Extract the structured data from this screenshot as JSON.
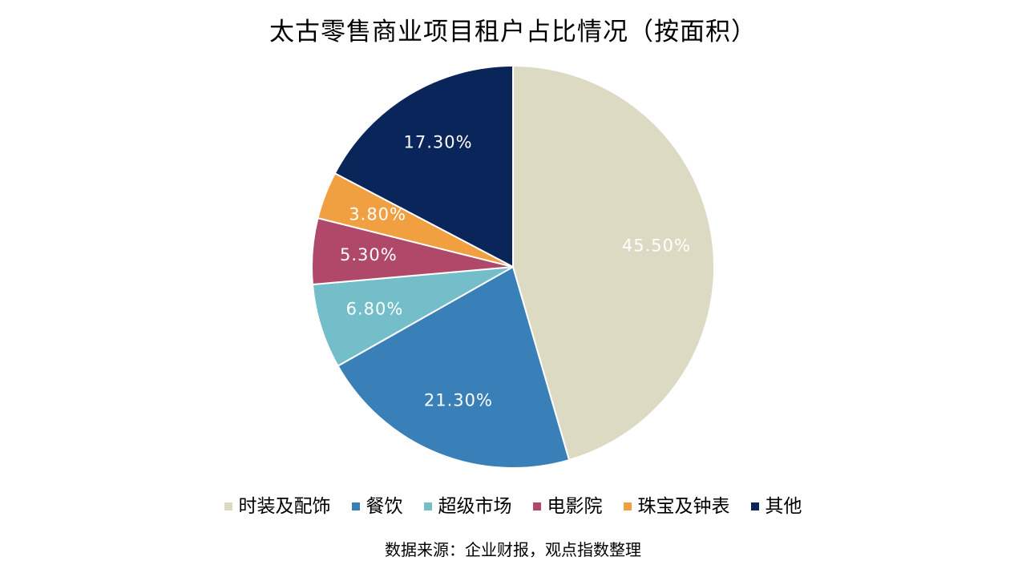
{
  "chart_data": {
    "type": "pie",
    "title": "太古零售商业项目租户占比情况（按面积）",
    "categories": [
      "时装及配饰",
      "餐饮",
      "超级市场",
      "电影院",
      "珠宝及钟表",
      "其他"
    ],
    "values": [
      45.5,
      21.3,
      6.8,
      5.3,
      3.8,
      17.3
    ],
    "labels": [
      "45.50%",
      "21.30%",
      "6.80%",
      "5.30%",
      "3.80%",
      "17.30%"
    ],
    "colors": [
      "#DCDAC3",
      "#3A80B8",
      "#74BECA",
      "#B0486A",
      "#F0A040",
      "#0A2559"
    ],
    "legend_position": "bottom",
    "start": "12 o'clock",
    "direction": "clockwise"
  },
  "source_note": "数据来源：企业财报，观点指数整理"
}
